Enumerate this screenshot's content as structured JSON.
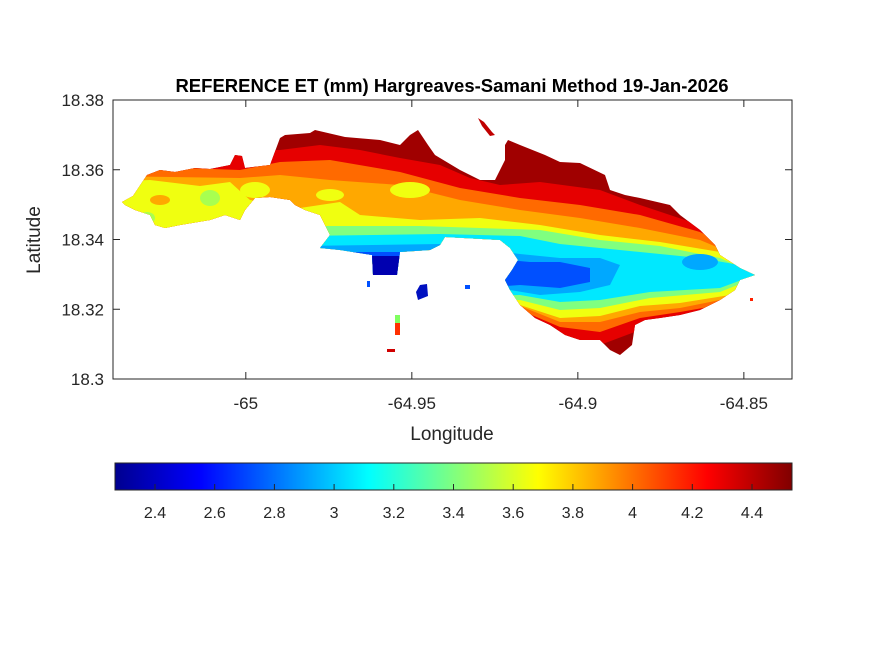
{
  "chart_data": {
    "type": "heatmap",
    "subtype": "filled-contour map",
    "title": "REFERENCE ET (mm) Hargreaves-Samani Method  19-Jan-2026",
    "xlabel": "Longitude",
    "ylabel": "Latitude",
    "xlim": [
      -65.04,
      -64.8355
    ],
    "ylim": [
      18.3,
      18.38
    ],
    "xticks": [
      -65,
      -64.95,
      -64.9,
      -64.85
    ],
    "xtick_labels": [
      "-65",
      "-64.95",
      "-64.9",
      "-64.85"
    ],
    "yticks": [
      18.3,
      18.32,
      18.34,
      18.36,
      18.38
    ],
    "ytick_labels": [
      "18.3",
      "18.32",
      "18.34",
      "18.36",
      "18.38"
    ],
    "colorbar": {
      "orientation": "horizontal",
      "location": "below",
      "colormap": "jet",
      "clim": [
        2.266,
        4.534
      ],
      "ticks": [
        2.4,
        2.6,
        2.8,
        3.0,
        3.2,
        3.4,
        3.6,
        3.8,
        4.0,
        4.2,
        4.4
      ],
      "tick_labels": [
        "2.4",
        "2.6",
        "2.8",
        "3",
        "3.2",
        "3.4",
        "3.6",
        "3.8",
        "4",
        "4.2",
        "4.4"
      ]
    },
    "pattern": {
      "north_coast": 4.45,
      "west_interior": 3.75,
      "south_central": 2.6,
      "east_interior": 2.9,
      "southeast_coast": 4.4
    },
    "grid": false
  }
}
